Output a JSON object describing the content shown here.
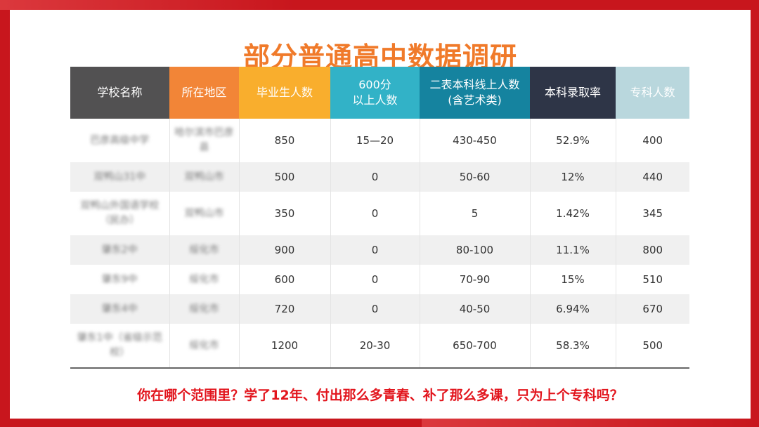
{
  "title": "部分普通高中数据调研",
  "headers": [
    "学校名称",
    "所在地区",
    "毕业生人数",
    "600分\n以上人数",
    "二表本科线上人数\n(含艺术类)",
    "本科录取率",
    "专科人数"
  ],
  "header_colors": [
    "#525152",
    "#f28537",
    "#f9ae2d",
    "#32b2c7",
    "#15839f",
    "#2e3547",
    "#b9d7dd"
  ],
  "rows": [
    {
      "school": "巴彦高级中学",
      "region": "哈尔滨市巴彦县",
      "graduates": "850",
      "over600": "15—20",
      "line2": "430-450",
      "rate": "52.9%",
      "junior": "400"
    },
    {
      "school": "双鸭山31中",
      "region": "双鸭山市",
      "graduates": "500",
      "over600": "0",
      "line2": "50-60",
      "rate": "12%",
      "junior": "440"
    },
    {
      "school": "双鸭山外国语学校（民办）",
      "region": "双鸭山市",
      "graduates": "350",
      "over600": "0",
      "line2": "5",
      "rate": "1.42%",
      "junior": "345"
    },
    {
      "school": "肇东2中",
      "region": "绥化市",
      "graduates": "900",
      "over600": "0",
      "line2": "80-100",
      "rate": "11.1%",
      "junior": "800"
    },
    {
      "school": "肇东9中",
      "region": "绥化市",
      "graduates": "600",
      "over600": "0",
      "line2": "70-90",
      "rate": "15%",
      "junior": "510"
    },
    {
      "school": "肇东4中",
      "region": "绥化市",
      "graduates": "720",
      "over600": "0",
      "line2": "40-50",
      "rate": "6.94%",
      "junior": "670"
    },
    {
      "school": "肇东1中（省级示范校）",
      "region": "绥化市",
      "graduates": "1200",
      "over600": "20-30",
      "line2": "650-700",
      "rate": "58.3%",
      "junior": "500"
    }
  ],
  "bottom_text": "你在哪个范围里？学了12年、付出那么多青春、补了那么多课，只为上个专科吗？"
}
